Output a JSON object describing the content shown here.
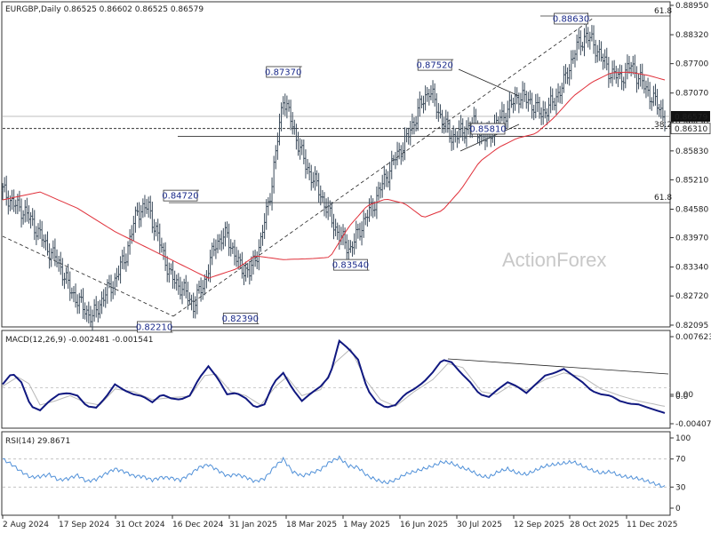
{
  "header": {
    "symbol_line": "EURGBP,Daily  0.86525 0.86602 0.86525 0.86579",
    "macd_label": "MACD(12,26,9) -0.002481 -0.001541",
    "rsi_label": "RSI(14) 29.8671"
  },
  "watermark": "ActionForex",
  "colors": {
    "price_bar": "#3a4a5a",
    "moving_average": "#e0303a",
    "macd_line": "#101880",
    "signal_line": "#b8b8b8",
    "rsi_line": "#5090d8",
    "tag_text": "#1a2a8a",
    "current_price_bg": "#111111",
    "current_price_text": "#ffffff"
  },
  "chart_data": [
    {
      "type": "line",
      "name": "price",
      "x": [
        "2 Aug 2024",
        "17 Sep 2024",
        "31 Oct 2024",
        "16 Dec 2024",
        "31 Jan 2025",
        "18 Mar 2025",
        "1 May 2025",
        "16 Jun 2025",
        "30 Jul 2025",
        "12 Sep 2025",
        "28 Oct 2025",
        "11 Dec 2025"
      ],
      "x_ticks": [
        "2 Aug 2024",
        "17 Sep 2024",
        "31 Oct 2024",
        "16 Dec 2024",
        "31 Jan 2025",
        "18 Mar 2025",
        "1 May 2025",
        "16 Jun 2025",
        "30 Jul 2025",
        "12 Sep 2025",
        "28 Oct 2025",
        "11 Dec 2025"
      ],
      "y_ticks": [
        "0.88950",
        "0.88320",
        "0.87700",
        "0.87070",
        "0.86450",
        "0.85830",
        "0.85210",
        "0.84580",
        "0.83970",
        "0.83340",
        "0.82720",
        "0.82095"
      ],
      "ylim": [
        0.82095,
        0.8895
      ],
      "close_path": [
        [
          0,
          0.8498
        ],
        [
          6,
          0.8468
        ],
        [
          12,
          0.8452
        ],
        [
          18,
          0.8416
        ],
        [
          24,
          0.8374
        ],
        [
          30,
          0.8343
        ],
        [
          36,
          0.8286
        ],
        [
          42,
          0.8252
        ],
        [
          48,
          0.8225
        ],
        [
          54,
          0.8271
        ],
        [
          60,
          0.8305
        ],
        [
          66,
          0.8362
        ],
        [
          72,
          0.8455
        ],
        [
          78,
          0.8462
        ],
        [
          84,
          0.8385
        ],
        [
          90,
          0.8312
        ],
        [
          96,
          0.8288
        ],
        [
          102,
          0.8252
        ],
        [
          108,
          0.8304
        ],
        [
          114,
          0.8387
        ],
        [
          120,
          0.8402
        ],
        [
          126,
          0.834
        ],
        [
          132,
          0.832
        ],
        [
          138,
          0.8388
        ],
        [
          144,
          0.8515
        ],
        [
          150,
          0.87
        ],
        [
          156,
          0.8624
        ],
        [
          162,
          0.8552
        ],
        [
          168,
          0.8508
        ],
        [
          174,
          0.8452
        ],
        [
          180,
          0.84
        ],
        [
          186,
          0.8372
        ],
        [
          192,
          0.8424
        ],
        [
          198,
          0.8466
        ],
        [
          204,
          0.852
        ],
        [
          210,
          0.8568
        ],
        [
          216,
          0.8608
        ],
        [
          222,
          0.8668
        ],
        [
          228,
          0.8715
        ],
        [
          234,
          0.8658
        ],
        [
          240,
          0.8612
        ],
        [
          246,
          0.8625
        ],
        [
          252,
          0.864
        ],
        [
          258,
          0.8608
        ],
        [
          264,
          0.864
        ],
        [
          270,
          0.8672
        ],
        [
          276,
          0.8702
        ],
        [
          282,
          0.8688
        ],
        [
          288,
          0.8662
        ],
        [
          294,
          0.8685
        ],
        [
          300,
          0.8728
        ],
        [
          306,
          0.8798
        ],
        [
          312,
          0.8832
        ],
        [
          318,
          0.88
        ],
        [
          324,
          0.8755
        ],
        [
          330,
          0.8738
        ],
        [
          336,
          0.8766
        ],
        [
          342,
          0.8728
        ],
        [
          348,
          0.8692
        ],
        [
          354,
          0.8658
        ]
      ],
      "ma_path": [
        [
          0,
          0.8478
        ],
        [
          20,
          0.8495
        ],
        [
          40,
          0.846
        ],
        [
          60,
          0.841
        ],
        [
          80,
          0.837
        ],
        [
          100,
          0.833
        ],
        [
          110,
          0.831
        ],
        [
          125,
          0.833
        ],
        [
          135,
          0.8358
        ],
        [
          150,
          0.835
        ],
        [
          165,
          0.8352
        ],
        [
          175,
          0.8355
        ],
        [
          185,
          0.842
        ],
        [
          195,
          0.8466
        ],
        [
          205,
          0.848
        ],
        [
          215,
          0.847
        ],
        [
          225,
          0.844
        ],
        [
          235,
          0.8455
        ],
        [
          245,
          0.85
        ],
        [
          255,
          0.856
        ],
        [
          265,
          0.859
        ],
        [
          275,
          0.861
        ],
        [
          285,
          0.862
        ],
        [
          295,
          0.8655
        ],
        [
          305,
          0.87
        ],
        [
          315,
          0.873
        ],
        [
          325,
          0.875
        ],
        [
          335,
          0.8752
        ],
        [
          345,
          0.8745
        ],
        [
          354,
          0.8735
        ]
      ],
      "swing_labels": [
        {
          "label": "0.88630",
          "value": 0.8863,
          "idx": 312
        },
        {
          "label": "0.87520",
          "value": 0.8752,
          "idx": 241
        },
        {
          "label": "0.87370",
          "value": 0.8737,
          "idx": 160
        },
        {
          "label": "0.84720",
          "value": 0.8472,
          "idx": 105
        },
        {
          "label": "0.83540",
          "value": 0.8354,
          "idx": 196
        },
        {
          "label": "0.82390",
          "value": 0.8239,
          "idx": 137
        },
        {
          "label": "0.82210",
          "value": 0.8221,
          "idx": 91
        },
        {
          "label": "0.85810",
          "value": 0.8581,
          "idx": 249
        }
      ],
      "fib_labels": [
        {
          "label": "61.8",
          "value": 0.8895
        },
        {
          "label": "38.2",
          "value": 0.8628
        },
        {
          "label": "61.8",
          "value": 0.8472
        }
      ],
      "horizontal_levels": [
        0.8631,
        0.8657,
        0.8614,
        0.8472
      ],
      "current_price_label": "0.86579",
      "support_label": "0.86310"
    },
    {
      "type": "line",
      "name": "MACD(12,26,9)",
      "y_ticks": [
        "0.007623",
        "0.00",
        "0.0",
        "-0.004073"
      ],
      "ylim": [
        -0.004073,
        0.007623
      ],
      "macd_path": [
        [
          0,
          0.0005
        ],
        [
          5,
          0.0022
        ],
        [
          10,
          0.0008
        ],
        [
          15,
          -0.0028
        ],
        [
          20,
          -0.0034
        ],
        [
          25,
          -0.002
        ],
        [
          30,
          -0.001
        ],
        [
          35,
          -0.0008
        ],
        [
          40,
          -0.0012
        ],
        [
          45,
          -0.0028
        ],
        [
          50,
          -0.003
        ],
        [
          55,
          -0.0015
        ],
        [
          60,
          0.0005
        ],
        [
          65,
          -0.0004
        ],
        [
          70,
          -0.001
        ],
        [
          75,
          -0.0013
        ],
        [
          80,
          -0.0022
        ],
        [
          85,
          -0.001
        ],
        [
          90,
          -0.0016
        ],
        [
          95,
          -0.0018
        ],
        [
          100,
          -0.0012
        ],
        [
          105,
          0.0014
        ],
        [
          110,
          0.0032
        ],
        [
          115,
          0.0014
        ],
        [
          120,
          -0.001
        ],
        [
          125,
          -0.0008
        ],
        [
          130,
          -0.0016
        ],
        [
          135,
          -0.003
        ],
        [
          140,
          -0.0025
        ],
        [
          145,
          0.0008
        ],
        [
          150,
          0.0022
        ],
        [
          155,
          -0.0002
        ],
        [
          160,
          -0.002
        ],
        [
          165,
          -0.0008
        ],
        [
          170,
          0.0002
        ],
        [
          175,
          0.0018
        ],
        [
          180,
          0.007
        ],
        [
          185,
          0.0058
        ],
        [
          190,
          0.0042
        ],
        [
          195,
          -0.0003
        ],
        [
          200,
          -0.0022
        ],
        [
          205,
          -0.003
        ],
        [
          210,
          -0.0026
        ],
        [
          215,
          -0.001
        ],
        [
          220,
          -0.0002
        ],
        [
          225,
          0.0008
        ],
        [
          230,
          0.0023
        ],
        [
          235,
          0.0042
        ],
        [
          240,
          0.0038
        ],
        [
          245,
          0.0022
        ],
        [
          250,
          0.0008
        ],
        [
          255,
          -0.001
        ],
        [
          260,
          -0.0014
        ],
        [
          265,
          -0.0002
        ],
        [
          270,
          0.0008
        ],
        [
          275,
          0.0002
        ],
        [
          280,
          -0.0008
        ],
        [
          285,
          0.0005
        ],
        [
          290,
          0.0018
        ],
        [
          295,
          0.0022
        ],
        [
          300,
          0.0028
        ],
        [
          305,
          0.0018
        ],
        [
          310,
          0.0008
        ],
        [
          315,
          -0.0005
        ],
        [
          320,
          -0.001
        ],
        [
          325,
          -0.0012
        ],
        [
          330,
          -0.002
        ],
        [
          335,
          -0.0024
        ],
        [
          340,
          -0.0025
        ],
        [
          345,
          -0.003
        ],
        [
          354,
          -0.0038
        ]
      ],
      "signal_path": [
        [
          0,
          0.0002
        ],
        [
          8,
          0.0016
        ],
        [
          14,
          0.0006
        ],
        [
          20,
          -0.0026
        ],
        [
          28,
          -0.002
        ],
        [
          36,
          -0.0012
        ],
        [
          44,
          -0.0022
        ],
        [
          52,
          -0.0026
        ],
        [
          60,
          -0.0002
        ],
        [
          70,
          -0.0006
        ],
        [
          80,
          -0.0018
        ],
        [
          90,
          -0.0015
        ],
        [
          100,
          -0.0013
        ],
        [
          108,
          0.0018
        ],
        [
          114,
          0.002
        ],
        [
          122,
          -0.0006
        ],
        [
          130,
          -0.0012
        ],
        [
          138,
          -0.0026
        ],
        [
          146,
          0.0002
        ],
        [
          152,
          0.0016
        ],
        [
          160,
          -0.0012
        ],
        [
          170,
          -0.0003
        ],
        [
          178,
          0.0038
        ],
        [
          186,
          0.0058
        ],
        [
          194,
          0.0012
        ],
        [
          202,
          -0.0018
        ],
        [
          210,
          -0.0028
        ],
        [
          220,
          -0.0006
        ],
        [
          230,
          0.0012
        ],
        [
          238,
          0.0036
        ],
        [
          246,
          0.003
        ],
        [
          256,
          -0.0006
        ],
        [
          264,
          -0.001
        ],
        [
          272,
          0.0004
        ],
        [
          280,
          -0.0004
        ],
        [
          290,
          0.0012
        ],
        [
          300,
          0.0022
        ],
        [
          310,
          0.0016
        ],
        [
          320,
          -0.0002
        ],
        [
          330,
          -0.0012
        ],
        [
          340,
          -0.002
        ],
        [
          354,
          -0.0028
        ]
      ]
    },
    {
      "type": "line",
      "name": "RSI(14)",
      "y_ticks": [
        "100",
        "70",
        "30",
        "0"
      ],
      "ylim": [
        0,
        100
      ],
      "rsi_path": [
        [
          0,
          70
        ],
        [
          5,
          62
        ],
        [
          10,
          52
        ],
        [
          15,
          44
        ],
        [
          20,
          45
        ],
        [
          25,
          48
        ],
        [
          30,
          40
        ],
        [
          35,
          42
        ],
        [
          40,
          47
        ],
        [
          45,
          38
        ],
        [
          50,
          41
        ],
        [
          55,
          49
        ],
        [
          60,
          56
        ],
        [
          65,
          52
        ],
        [
          70,
          46
        ],
        [
          75,
          45
        ],
        [
          80,
          40
        ],
        [
          85,
          44
        ],
        [
          90,
          43
        ],
        [
          95,
          40
        ],
        [
          100,
          48
        ],
        [
          105,
          58
        ],
        [
          110,
          62
        ],
        [
          115,
          54
        ],
        [
          120,
          46
        ],
        [
          125,
          48
        ],
        [
          130,
          44
        ],
        [
          135,
          38
        ],
        [
          140,
          42
        ],
        [
          145,
          58
        ],
        [
          150,
          70
        ],
        [
          155,
          52
        ],
        [
          160,
          46
        ],
        [
          165,
          50
        ],
        [
          170,
          55
        ],
        [
          175,
          66
        ],
        [
          180,
          72
        ],
        [
          185,
          60
        ],
        [
          190,
          58
        ],
        [
          195,
          46
        ],
        [
          200,
          40
        ],
        [
          205,
          36
        ],
        [
          210,
          40
        ],
        [
          215,
          48
        ],
        [
          220,
          52
        ],
        [
          225,
          56
        ],
        [
          230,
          60
        ],
        [
          235,
          66
        ],
        [
          240,
          64
        ],
        [
          245,
          58
        ],
        [
          250,
          54
        ],
        [
          255,
          46
        ],
        [
          260,
          44
        ],
        [
          265,
          52
        ],
        [
          270,
          56
        ],
        [
          275,
          50
        ],
        [
          280,
          48
        ],
        [
          285,
          54
        ],
        [
          290,
          60
        ],
        [
          295,
          62
        ],
        [
          300,
          64
        ],
        [
          305,
          66
        ],
        [
          310,
          60
        ],
        [
          315,
          54
        ],
        [
          320,
          50
        ],
        [
          325,
          52
        ],
        [
          330,
          46
        ],
        [
          335,
          44
        ],
        [
          340,
          42
        ],
        [
          345,
          38
        ],
        [
          354,
          30
        ]
      ]
    }
  ]
}
